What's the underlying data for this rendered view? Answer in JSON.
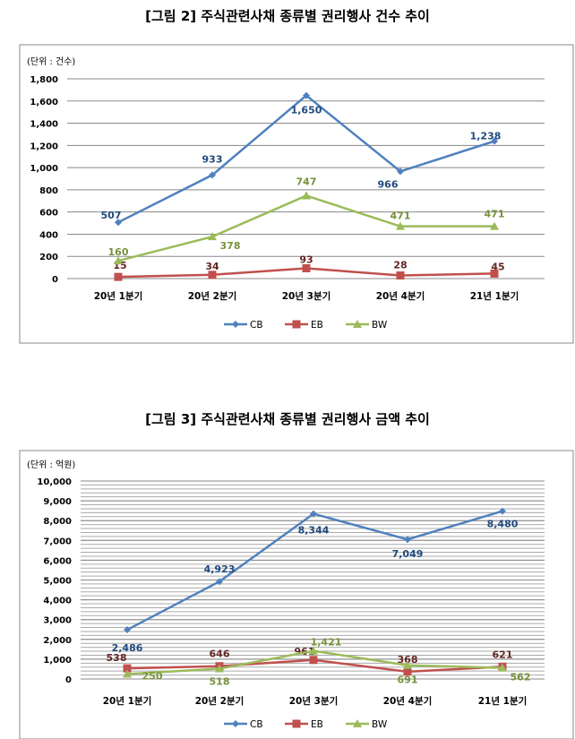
{
  "chart_data": [
    {
      "type": "line",
      "title": "[그림 2] 주식관련사채 종류별 권리행사 건수 추이",
      "unit_label": "(단위 : 건수)",
      "categories": [
        "20년 1분기",
        "20년 2분기",
        "20년 3분기",
        "20년 4분기",
        "21년 1분기"
      ],
      "ylim": [
        0,
        1800
      ],
      "yticks": [
        0,
        200,
        400,
        600,
        800,
        1000,
        1200,
        1400,
        1600,
        1800
      ],
      "ytick_labels": [
        "0",
        "200",
        "400",
        "600",
        "800",
        "1,000",
        "1,200",
        "1,400",
        "1,600",
        "1,800"
      ],
      "grid": "major",
      "legend": "bottom",
      "series": [
        {
          "name": "CB",
          "color": "#4F81BD",
          "label_color": "#1F497D",
          "marker": "diamond",
          "values": [
            507,
            933,
            1650,
            966,
            1238
          ],
          "labels": [
            "507",
            "933",
            "1,650",
            "966",
            "1,238"
          ]
        },
        {
          "name": "EB",
          "color": "#C0504D",
          "label_color": "#632523",
          "marker": "square",
          "values": [
            15,
            34,
            93,
            28,
            45
          ],
          "labels": [
            "15",
            "34",
            "93",
            "28",
            "45"
          ]
        },
        {
          "name": "BW",
          "color": "#9BBB59",
          "label_color": "#76923C",
          "marker": "triangle",
          "values": [
            160,
            378,
            747,
            471,
            471
          ],
          "labels": [
            "160",
            "378",
            "747",
            "471",
            "471"
          ]
        }
      ]
    },
    {
      "type": "line",
      "title": "[그림 3] 주식관련사채 종류별 권리행사 금액 추이",
      "unit_label": "(단위 : 억원)",
      "categories": [
        "20년 1분기",
        "20년 2분기",
        "20년 3분기",
        "20년 4분기",
        "21년 1분기"
      ],
      "ylim": [
        0,
        10000
      ],
      "yticks": [
        0,
        1000,
        2000,
        3000,
        4000,
        5000,
        6000,
        7000,
        8000,
        9000,
        10000
      ],
      "ytick_labels": [
        "0",
        "1,000",
        "2,000",
        "3,000",
        "4,000",
        "5,000",
        "6,000",
        "7,000",
        "8,000",
        "9,000",
        "10,000"
      ],
      "grid": "major and minor",
      "legend": "bottom",
      "series": [
        {
          "name": "CB",
          "color": "#4F81BD",
          "label_color": "#1F497D",
          "marker": "diamond",
          "values": [
            2486,
            4923,
            8344,
            7049,
            8480
          ],
          "labels": [
            "2,486",
            "4,923",
            "8,344",
            "7,049",
            "8,480"
          ]
        },
        {
          "name": "EB",
          "color": "#C0504D",
          "label_color": "#632523",
          "marker": "square",
          "values": [
            538,
            646,
            961,
            368,
            621
          ],
          "labels": [
            "538",
            "646",
            "961",
            "368",
            "621"
          ]
        },
        {
          "name": "BW",
          "color": "#9BBB59",
          "label_color": "#76923C",
          "marker": "triangle",
          "values": [
            250,
            518,
            1421,
            691,
            562
          ],
          "labels": [
            "250",
            "518",
            "1,421",
            "691",
            "562"
          ]
        }
      ]
    }
  ]
}
